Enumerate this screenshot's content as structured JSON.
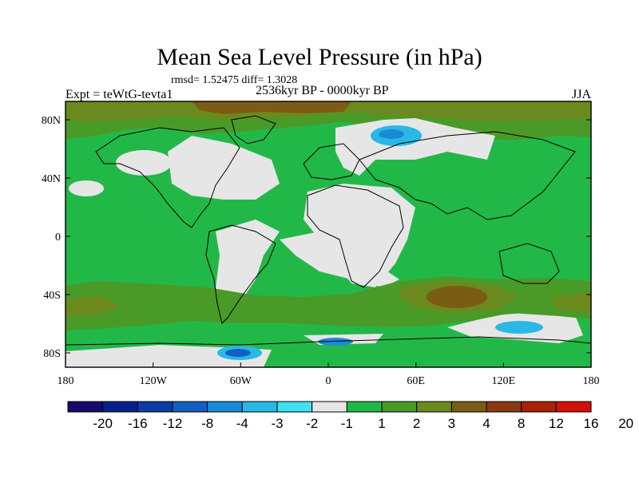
{
  "title": "Mean Sea Level Pressure (in hPa)",
  "stats": "rmsd= 1.52475 diff= 1.3028",
  "period": "2536kyr BP - 0000kyr BP",
  "experiment": "Expt = teWtG-tevta1",
  "season": "JJA",
  "lat_labels": [
    "80N",
    "40N",
    "0",
    "40S",
    "80S"
  ],
  "lon_labels": [
    "180",
    "120W",
    "60W",
    "0",
    "60E",
    "120E",
    "180"
  ],
  "colorbar": {
    "colors": [
      "#170a6e",
      "#08208c",
      "#0b3ca6",
      "#1060c0",
      "#1a8ad6",
      "#2ab8e6",
      "#40e0f0",
      "#e6e6e6",
      "#22b848",
      "#4a9a28",
      "#6b8a1e",
      "#7a5c14",
      "#8a3a10",
      "#a62208",
      "#d41008"
    ],
    "labels": [
      "-20",
      "-16",
      "-12",
      "-8",
      "-4",
      "-3",
      "-2",
      "-1",
      "1",
      "2",
      "3",
      "4",
      "8",
      "12",
      "16",
      "20"
    ]
  }
}
